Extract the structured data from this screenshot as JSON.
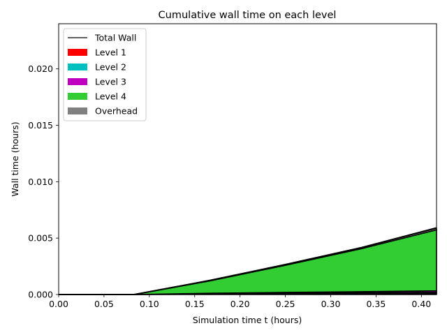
{
  "chart_data": {
    "type": "area",
    "title": "Cumulative wall time on each level",
    "xlabel": "Simulation time t (hours)",
    "ylabel": "Wall time (hours)",
    "xlim": [
      0,
      0.4167
    ],
    "ylim": [
      0,
      0.024
    ],
    "x_ticks": [
      {
        "value": 0.0,
        "label": "0.00"
      },
      {
        "value": 0.05,
        "label": "0.05"
      },
      {
        "value": 0.1,
        "label": "0.10"
      },
      {
        "value": 0.15,
        "label": "0.15"
      },
      {
        "value": 0.2,
        "label": "0.20"
      },
      {
        "value": 0.25,
        "label": "0.25"
      },
      {
        "value": 0.3,
        "label": "0.30"
      },
      {
        "value": 0.35,
        "label": "0.35"
      },
      {
        "value": 0.4,
        "label": "0.40"
      }
    ],
    "y_ticks": [
      {
        "value": 0.0,
        "label": "0.000"
      },
      {
        "value": 0.005,
        "label": "0.005"
      },
      {
        "value": 0.01,
        "label": "0.010"
      },
      {
        "value": 0.015,
        "label": "0.015"
      },
      {
        "value": 0.02,
        "label": "0.020"
      }
    ],
    "grid": false,
    "legend_position": "upper-left",
    "x": [
      0.0,
      0.0833,
      0.1667,
      0.25,
      0.3333,
      0.4167
    ],
    "series": [
      {
        "name": "Level 1",
        "color": "#ff0000",
        "values": [
          0.0,
          0.0,
          3e-05,
          6e-05,
          8e-05,
          0.0001
        ]
      },
      {
        "name": "Level 2",
        "color": "#00bfbf",
        "values": [
          0.0,
          0.0,
          3e-05,
          5e-05,
          7e-05,
          0.0001
        ]
      },
      {
        "name": "Level 3",
        "color": "#bf00bf",
        "values": [
          0.0,
          0.0,
          5e-05,
          8e-05,
          0.0001,
          0.00013
        ]
      },
      {
        "name": "Level 4",
        "color": "#32cd32",
        "values": [
          0.0,
          0.0,
          0.0011,
          0.0024,
          0.0038,
          0.0054
        ]
      },
      {
        "name": "Overhead",
        "color": "#808080",
        "values": [
          0.0,
          0.0,
          4e-05,
          7e-05,
          0.0001,
          0.00015
        ]
      }
    ],
    "total_wall": {
      "name": "Total Wall",
      "color": "#000000",
      "values": [
        0.0,
        0.0,
        0.00125,
        0.00266,
        0.00415,
        0.00591
      ]
    }
  }
}
